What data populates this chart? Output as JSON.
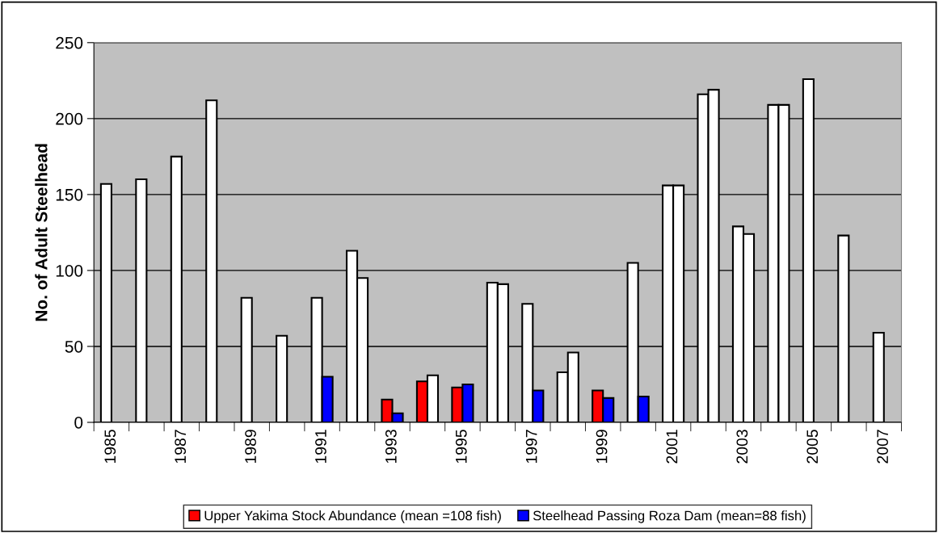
{
  "chart_data": {
    "type": "bar",
    "ylabel": "No. of Adult Steelhead",
    "categories": [
      "1985",
      null,
      "1987",
      null,
      "1989",
      null,
      "1991",
      null,
      "1993",
      null,
      "1995",
      null,
      "1997",
      null,
      "1999",
      null,
      "2001",
      null,
      "2003",
      null,
      "2005",
      null,
      "2007"
    ],
    "series": [
      {
        "name": "Upper Yakima Stock Abundance (mean =108 fish)",
        "color": "#ff0000",
        "values": [
          157,
          160,
          175,
          212,
          82,
          57,
          82,
          113,
          15,
          27,
          23,
          92,
          78,
          33,
          21,
          105,
          156,
          216,
          129,
          209,
          226,
          123,
          59
        ],
        "colors": [
          "#ffffff",
          "#ffffff",
          "#ffffff",
          "#ffffff",
          "#ffffff",
          "#ffffff",
          "#ffffff",
          "#ffffff",
          "#ff0000",
          "#ff0000",
          "#ff0000",
          "#ffffff",
          "#ffffff",
          "#ffffff",
          "#ff0000",
          "#ffffff",
          "#ffffff",
          "#ffffff",
          "#ffffff",
          "#ffffff",
          "#ffffff",
          "#ffffff",
          "#ffffff"
        ]
      },
      {
        "name": "Steelhead Passing Roza Dam (mean=88 fish)",
        "color": "#0000ff",
        "values": [
          null,
          null,
          null,
          null,
          null,
          null,
          30,
          95,
          6,
          31,
          25,
          91,
          21,
          46,
          16,
          17,
          156,
          219,
          124,
          209,
          null,
          null,
          null
        ],
        "colors": [
          "#ffffff",
          "#ffffff",
          "#ffffff",
          "#ffffff",
          "#ffffff",
          "#ffffff",
          "#0000ff",
          "#ffffff",
          "#0000ff",
          "#ffffff",
          "#0000ff",
          "#ffffff",
          "#0000ff",
          "#ffffff",
          "#0000ff",
          "#0000ff",
          "#ffffff",
          "#ffffff",
          "#ffffff",
          "#ffffff",
          "#ffffff",
          "#ffffff",
          "#ffffff"
        ]
      }
    ],
    "ylim": [
      0,
      250
    ],
    "yticks": [
      0,
      50,
      100,
      150,
      200,
      250
    ],
    "grid": "y",
    "legend": "bottom"
  }
}
